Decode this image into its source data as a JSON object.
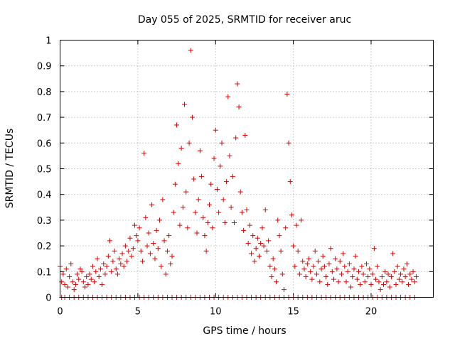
{
  "chart_data": {
    "type": "scatter",
    "title": "Day 055 of 2025, SRMTID for receiver aruc",
    "xlabel": "GPS time / hours",
    "ylabel": "SRMTID / TECUs",
    "xlim": [
      0,
      24
    ],
    "ylim": [
      0,
      1
    ],
    "x_ticks": [
      "0",
      "5",
      "10",
      "15",
      "20"
    ],
    "y_ticks": [
      "0",
      "0.1",
      "0.2",
      "0.3",
      "0.4",
      "0.5",
      "0.6",
      "0.7",
      "0.8",
      "0.9",
      "1"
    ],
    "grid": true,
    "marker": "+",
    "marker_color": "#e00000",
    "series": [
      {
        "name": "SRMTID",
        "points": [
          [
            0.0,
            0.12
          ],
          [
            0.1,
            0.06
          ],
          [
            0.2,
            0.09
          ],
          [
            0.3,
            0.05
          ],
          [
            0.4,
            0.11
          ],
          [
            0.5,
            0.04
          ],
          [
            0.6,
            0.08
          ],
          [
            0.7,
            0.13
          ],
          [
            0.8,
            0.06
          ],
          [
            0.9,
            0.03
          ],
          [
            1.0,
            0.05
          ],
          [
            1.1,
            0.09
          ],
          [
            1.2,
            0.07
          ],
          [
            1.3,
            0.11
          ],
          [
            1.4,
            0.1
          ],
          [
            1.5,
            0.06
          ],
          [
            1.6,
            0.04
          ],
          [
            1.7,
            0.08
          ],
          [
            1.8,
            0.05
          ],
          [
            1.9,
            0.09
          ],
          [
            2.0,
            0.07
          ],
          [
            2.1,
            0.12
          ],
          [
            2.2,
            0.06
          ],
          [
            2.3,
            0.1
          ],
          [
            2.4,
            0.15
          ],
          [
            2.5,
            0.08
          ],
          [
            2.6,
            0.11
          ],
          [
            2.7,
            0.05
          ],
          [
            2.8,
            0.13
          ],
          [
            2.9,
            0.09
          ],
          [
            3.0,
            0.12
          ],
          [
            3.1,
            0.16
          ],
          [
            3.2,
            0.22
          ],
          [
            3.3,
            0.1
          ],
          [
            3.4,
            0.14
          ],
          [
            3.5,
            0.18
          ],
          [
            3.6,
            0.11
          ],
          [
            3.7,
            0.09
          ],
          [
            3.8,
            0.15
          ],
          [
            3.9,
            0.13
          ],
          [
            4.0,
            0.17
          ],
          [
            4.1,
            0.12
          ],
          [
            4.2,
            0.2
          ],
          [
            4.3,
            0.14
          ],
          [
            4.4,
            0.18
          ],
          [
            4.5,
            0.23
          ],
          [
            4.6,
            0.16
          ],
          [
            4.7,
            0.19
          ],
          [
            4.8,
            0.28
          ],
          [
            4.9,
            0.24
          ],
          [
            5.0,
            0.22
          ],
          [
            5.1,
            0.27
          ],
          [
            5.2,
            0.18
          ],
          [
            5.3,
            0.14
          ],
          [
            5.4,
            0.56
          ],
          [
            5.5,
            0.31
          ],
          [
            5.6,
            0.2
          ],
          [
            5.7,
            0.25
          ],
          [
            5.8,
            0.17
          ],
          [
            5.9,
            0.36
          ],
          [
            6.0,
            0.21
          ],
          [
            6.1,
            0.15
          ],
          [
            6.2,
            0.26
          ],
          [
            6.3,
            0.19
          ],
          [
            6.4,
            0.3
          ],
          [
            6.5,
            0.12
          ],
          [
            6.6,
            0.38
          ],
          [
            6.7,
            0.22
          ],
          [
            6.8,
            0.09
          ],
          [
            6.9,
            0.18
          ],
          [
            7.0,
            0.24
          ],
          [
            7.1,
            0.13
          ],
          [
            7.2,
            0.16
          ],
          [
            7.3,
            0.33
          ],
          [
            7.4,
            0.44
          ],
          [
            7.5,
            0.67
          ],
          [
            7.6,
            0.52
          ],
          [
            7.7,
            0.28
          ],
          [
            7.8,
            0.58
          ],
          [
            7.9,
            0.35
          ],
          [
            8.0,
            0.75
          ],
          [
            8.1,
            0.41
          ],
          [
            8.2,
            0.27
          ],
          [
            8.3,
            0.6
          ],
          [
            8.4,
            0.96
          ],
          [
            8.5,
            0.7
          ],
          [
            8.6,
            0.46
          ],
          [
            8.7,
            0.33
          ],
          [
            8.8,
            0.25
          ],
          [
            8.9,
            0.38
          ],
          [
            9.0,
            0.57
          ],
          [
            9.1,
            0.47
          ],
          [
            9.2,
            0.31
          ],
          [
            9.3,
            0.24
          ],
          [
            9.4,
            0.18
          ],
          [
            9.5,
            0.29
          ],
          [
            9.6,
            0.36
          ],
          [
            9.7,
            0.44
          ],
          [
            9.8,
            0.27
          ],
          [
            9.9,
            0.54
          ],
          [
            10.0,
            0.65
          ],
          [
            10.1,
            0.42
          ],
          [
            10.2,
            0.33
          ],
          [
            10.3,
            0.51
          ],
          [
            10.4,
            0.6
          ],
          [
            10.5,
            0.38
          ],
          [
            10.6,
            0.29
          ],
          [
            10.7,
            0.45
          ],
          [
            10.8,
            0.78
          ],
          [
            10.9,
            0.55
          ],
          [
            11.0,
            0.35
          ],
          [
            11.1,
            0.47
          ],
          [
            11.2,
            0.29
          ],
          [
            11.3,
            0.62
          ],
          [
            11.4,
            0.83
          ],
          [
            11.5,
            0.74
          ],
          [
            11.6,
            0.41
          ],
          [
            11.7,
            0.33
          ],
          [
            11.8,
            0.26
          ],
          [
            11.9,
            0.63
          ],
          [
            12.0,
            0.34
          ],
          [
            12.1,
            0.21
          ],
          [
            12.2,
            0.28
          ],
          [
            12.3,
            0.17
          ],
          [
            12.4,
            0.24
          ],
          [
            12.5,
            0.14
          ],
          [
            12.6,
            0.19
          ],
          [
            12.7,
            0.23
          ],
          [
            12.8,
            0.16
          ],
          [
            12.9,
            0.21
          ],
          [
            13.0,
            0.27
          ],
          [
            13.1,
            0.2
          ],
          [
            13.2,
            0.34
          ],
          [
            13.3,
            0.18
          ],
          [
            13.4,
            0.22
          ],
          [
            13.5,
            0.12
          ],
          [
            13.6,
            0.08
          ],
          [
            13.7,
            0.15
          ],
          [
            13.8,
            0.11
          ],
          [
            13.9,
            0.06
          ],
          [
            14.0,
            0.3
          ],
          [
            14.1,
            0.24
          ],
          [
            14.2,
            0.18
          ],
          [
            14.3,
            0.09
          ],
          [
            14.4,
            0.03
          ],
          [
            14.5,
            0.27
          ],
          [
            14.6,
            0.79
          ],
          [
            14.7,
            0.6
          ],
          [
            14.8,
            0.45
          ],
          [
            14.9,
            0.32
          ],
          [
            15.0,
            0.2
          ],
          [
            15.1,
            0.12
          ],
          [
            15.2,
            0.28
          ],
          [
            15.3,
            0.18
          ],
          [
            15.4,
            0.09
          ],
          [
            15.5,
            0.3
          ],
          [
            15.6,
            0.14
          ],
          [
            15.7,
            0.11
          ],
          [
            15.8,
            0.08
          ],
          [
            15.9,
            0.13
          ],
          [
            16.0,
            0.15
          ],
          [
            16.1,
            0.1
          ],
          [
            16.2,
            0.07
          ],
          [
            16.3,
            0.12
          ],
          [
            16.4,
            0.18
          ],
          [
            16.5,
            0.09
          ],
          [
            16.6,
            0.14
          ],
          [
            16.7,
            0.06
          ],
          [
            16.8,
            0.11
          ],
          [
            16.9,
            0.16
          ],
          [
            17.0,
            0.12
          ],
          [
            17.1,
            0.08
          ],
          [
            17.2,
            0.05
          ],
          [
            17.3,
            0.13
          ],
          [
            17.4,
            0.19
          ],
          [
            17.5,
            0.1
          ],
          [
            17.6,
            0.07
          ],
          [
            17.7,
            0.15
          ],
          [
            17.8,
            0.11
          ],
          [
            17.9,
            0.06
          ],
          [
            18.0,
            0.14
          ],
          [
            18.1,
            0.09
          ],
          [
            18.2,
            0.17
          ],
          [
            18.3,
            0.12
          ],
          [
            18.4,
            0.06
          ],
          [
            18.5,
            0.1
          ],
          [
            18.6,
            0.13
          ],
          [
            18.7,
            0.04
          ],
          [
            18.8,
            0.08
          ],
          [
            18.9,
            0.11
          ],
          [
            19.0,
            0.16
          ],
          [
            19.1,
            0.07
          ],
          [
            19.2,
            0.1
          ],
          [
            19.3,
            0.05
          ],
          [
            19.4,
            0.12
          ],
          [
            19.5,
            0.09
          ],
          [
            19.6,
            0.06
          ],
          [
            19.7,
            0.13
          ],
          [
            19.8,
            0.08
          ],
          [
            19.9,
            0.11
          ],
          [
            20.0,
            0.05
          ],
          [
            20.1,
            0.09
          ],
          [
            20.2,
            0.19
          ],
          [
            20.3,
            0.07
          ],
          [
            20.4,
            0.12
          ],
          [
            20.5,
            0.06
          ],
          [
            20.6,
            0.03
          ],
          [
            20.7,
            0.08
          ],
          [
            20.8,
            0.05
          ],
          [
            20.9,
            0.1
          ],
          [
            21.0,
            0.06
          ],
          [
            21.1,
            0.09
          ],
          [
            21.2,
            0.04
          ],
          [
            21.3,
            0.08
          ],
          [
            21.4,
            0.17
          ],
          [
            21.5,
            0.1
          ],
          [
            21.6,
            0.05
          ],
          [
            21.7,
            0.12
          ],
          [
            21.8,
            0.07
          ],
          [
            21.9,
            0.09
          ],
          [
            22.0,
            0.06
          ],
          [
            22.1,
            0.11
          ],
          [
            22.2,
            0.08
          ],
          [
            22.3,
            0.13
          ],
          [
            22.4,
            0.05
          ],
          [
            22.5,
            0.09
          ],
          [
            22.6,
            0.07
          ],
          [
            22.7,
            0.1
          ],
          [
            22.8,
            0.06
          ],
          [
            22.9,
            0.08
          ]
        ],
        "zero_points_x": [
          0.1,
          0.3,
          0.6,
          0.9,
          1.2,
          1.5,
          1.8,
          2.1,
          2.4,
          2.7,
          3.0,
          3.3,
          3.6,
          3.9,
          4.2,
          4.5,
          4.8,
          5.1,
          5.4,
          5.7,
          6.0,
          6.3,
          6.6,
          6.9,
          7.2,
          7.5,
          7.8,
          8.1,
          8.4,
          8.7,
          9.0,
          9.3,
          9.6,
          9.9,
          10.2,
          10.5,
          10.8,
          11.1,
          11.4,
          11.7,
          12.0,
          12.3,
          12.6,
          12.9,
          13.2,
          13.5,
          13.8,
          14.1,
          14.4,
          14.7,
          15.0,
          15.3,
          15.6,
          15.9,
          16.2,
          16.5,
          16.8,
          17.1,
          17.4,
          17.7,
          18.0,
          18.3,
          18.6,
          18.9,
          19.2,
          19.5,
          19.8,
          20.1,
          20.4,
          20.7,
          21.0,
          21.3,
          21.6,
          21.9,
          22.2,
          22.5,
          22.8
        ]
      }
    ]
  }
}
